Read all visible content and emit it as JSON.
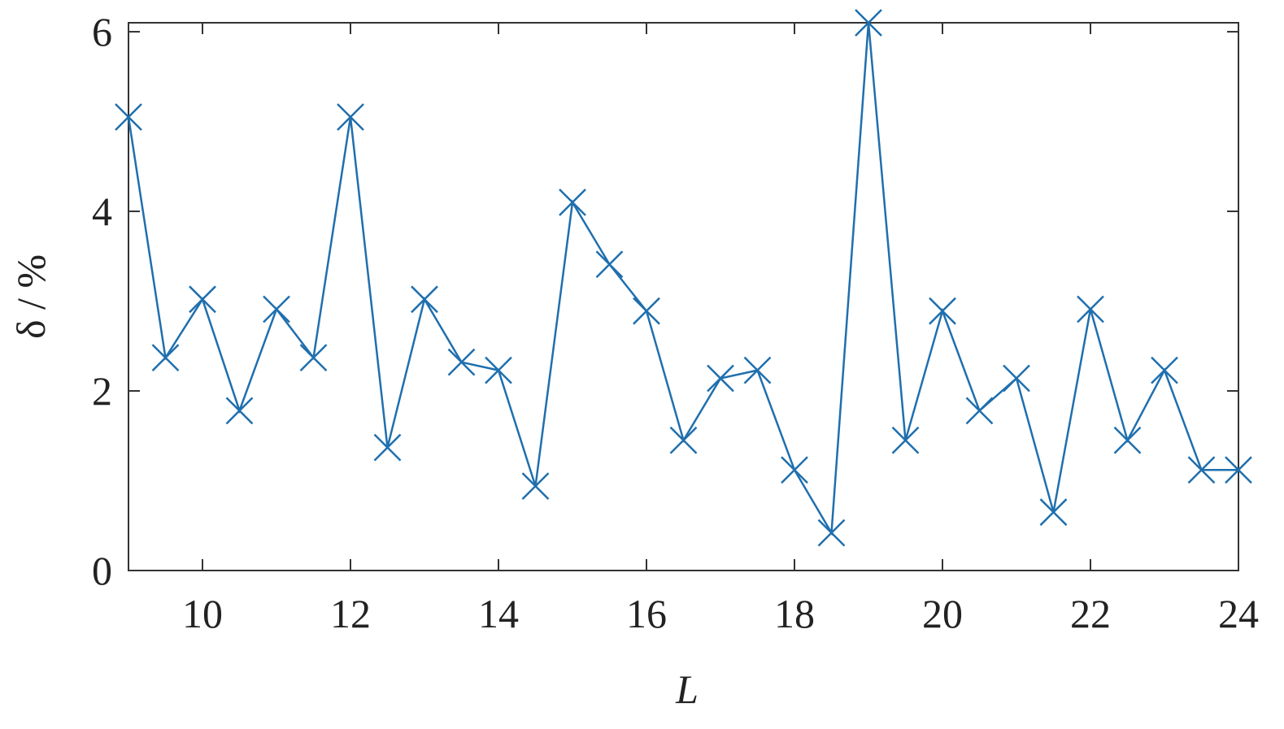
{
  "chart_data": {
    "type": "line",
    "xlabel": "L",
    "ylabel": "δ / %",
    "x": [
      9,
      9.5,
      10,
      10.5,
      11,
      11.5,
      12,
      12.5,
      13,
      13.5,
      14,
      14.5,
      15,
      15.5,
      16,
      16.5,
      17,
      17.5,
      18,
      18.5,
      19,
      19.5,
      20,
      20.5,
      21,
      21.5,
      22,
      22.5,
      23,
      23.5,
      24
    ],
    "values": [
      5.05,
      2.37,
      3.02,
      1.78,
      2.91,
      2.37,
      5.05,
      1.37,
      3.02,
      2.32,
      2.23,
      0.94,
      4.1,
      3.41,
      2.89,
      1.45,
      2.14,
      2.23,
      1.12,
      0.42,
      6.1,
      1.45,
      2.89,
      1.78,
      2.14,
      0.65,
      2.91,
      1.45,
      2.23,
      1.12,
      1.12
    ],
    "color": "#1f6fae",
    "marker": "x",
    "xlim": [
      9,
      24
    ],
    "xticks": [
      10,
      12,
      14,
      16,
      18,
      20,
      22,
      24
    ],
    "ylim": [
      0,
      6.1
    ],
    "yticks": [
      0,
      2,
      4,
      6
    ],
    "grid": false
  }
}
